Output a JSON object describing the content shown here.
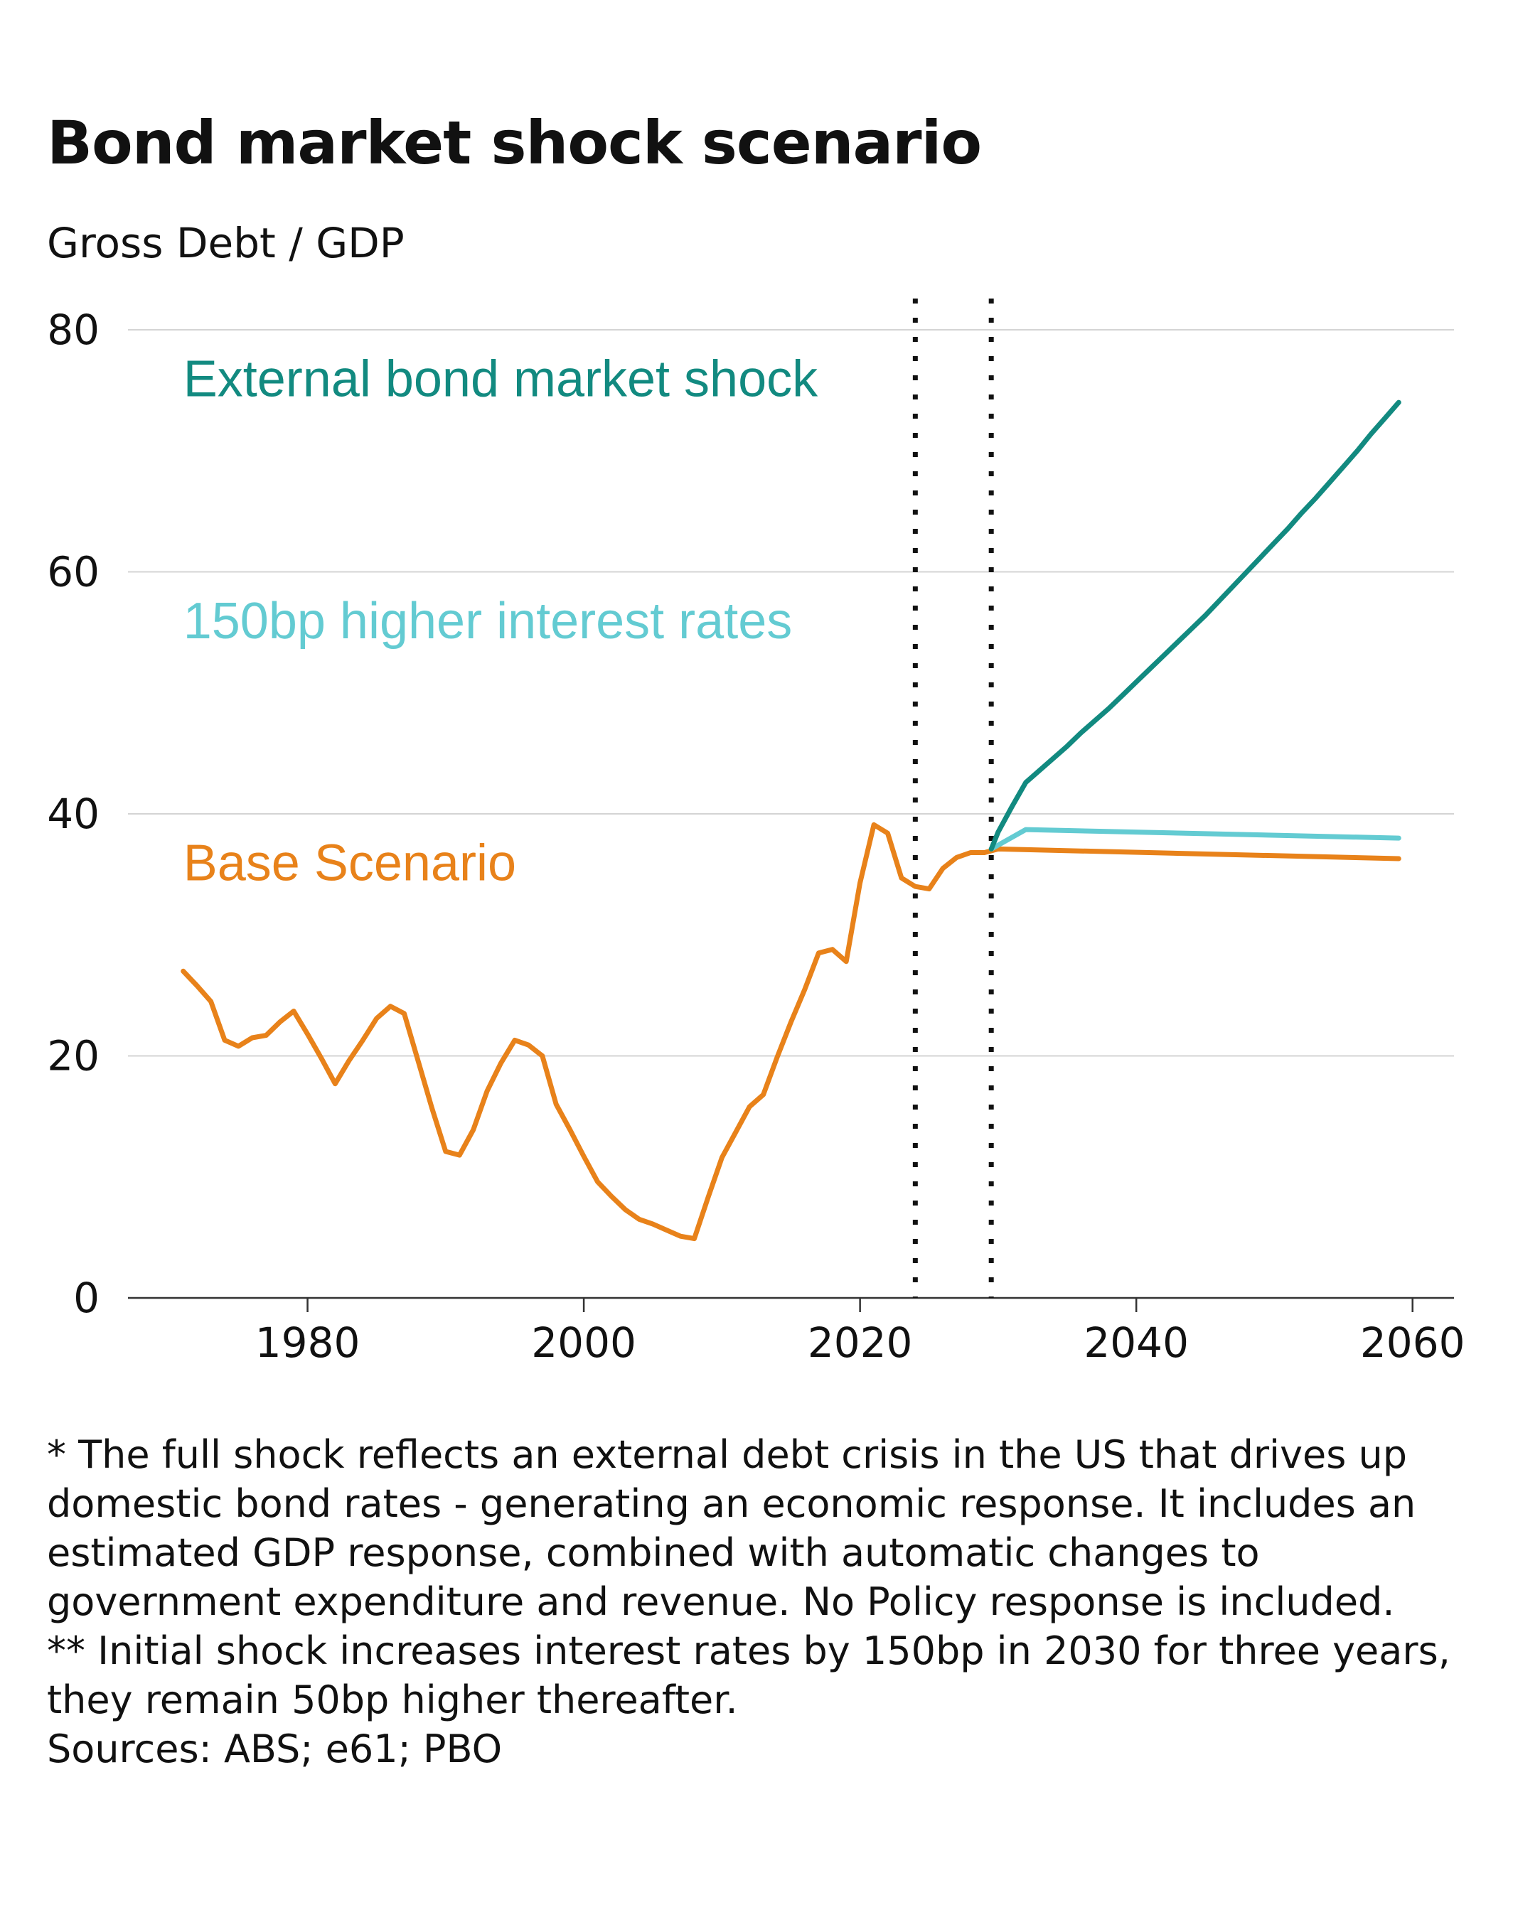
{
  "chart_data": {
    "type": "line",
    "title": "Bond market shock scenario",
    "ylabel": "Gross Debt / GDP",
    "xlim": [
      1967,
      2063
    ],
    "ylim": [
      0,
      80
    ],
    "x_ticks": [
      1980,
      2000,
      2020,
      2040,
      2060
    ],
    "y_ticks": [
      0,
      20,
      40,
      60,
      80
    ],
    "grid": "horizontal",
    "vertical_markers": [
      2024,
      2029.5
    ],
    "series": [
      {
        "name": "Base Scenario",
        "color": "#E8821A",
        "label_anchor": [
          1971,
          34.5
        ],
        "x": [
          1971,
          1972,
          1973,
          1974,
          1975,
          1976,
          1977,
          1978,
          1979,
          1980,
          1981,
          1982,
          1983,
          1984,
          1985,
          1986,
          1987,
          1988,
          1989,
          1990,
          1991,
          1992,
          1993,
          1994,
          1995,
          1996,
          1997,
          1998,
          1999,
          2000,
          2001,
          2002,
          2003,
          2004,
          2005,
          2006,
          2007,
          2008,
          2009,
          2010,
          2011,
          2012,
          2013,
          2014,
          2015,
          2016,
          2017,
          2018,
          2019,
          2020,
          2021,
          2022,
          2023,
          2024,
          2025,
          2026,
          2027,
          2028,
          2029,
          2030,
          2059
        ],
        "y": [
          27,
          25.8,
          24.5,
          21.3,
          20.8,
          21.5,
          21.7,
          22.8,
          23.7,
          21.8,
          19.8,
          17.7,
          19.6,
          21.3,
          23.1,
          24.1,
          23.5,
          19.6,
          15.7,
          12.1,
          11.8,
          13.9,
          17.1,
          19.4,
          21.3,
          20.9,
          20,
          16,
          13.9,
          11.7,
          9.6,
          8.4,
          7.3,
          6.5,
          6.1,
          5.6,
          5.1,
          4.9,
          8.3,
          11.6,
          13.7,
          15.8,
          16.8,
          19.9,
          22.8,
          25.5,
          28.5,
          28.8,
          27.8,
          34.3,
          39.1,
          38.4,
          34.7,
          34,
          33.8,
          35.5,
          36.4,
          36.8,
          36.8,
          37.1,
          36.3
        ]
      },
      {
        "name": "150bp higher interest rates",
        "color": "#63CBD2",
        "label_anchor": [
          1971,
          54.5
        ],
        "x": [
          2029.5,
          2032,
          2059
        ],
        "y": [
          37.1,
          38.7,
          38
        ]
      },
      {
        "name": "External bond market shock",
        "color": "#128A80",
        "label_anchor": [
          1971,
          74.5
        ],
        "x": [
          2029.5,
          2030,
          2031,
          2032,
          2033,
          2034,
          2035,
          2036,
          2037,
          2038,
          2039,
          2040,
          2041,
          2042,
          2043,
          2044,
          2045,
          2046,
          2047,
          2048,
          2049,
          2050,
          2051,
          2052,
          2053,
          2054,
          2055,
          2056,
          2057,
          2058,
          2059
        ],
        "y": [
          37.1,
          38.5,
          40.6,
          42.6,
          43.6,
          44.6,
          45.6,
          46.7,
          47.7,
          48.7,
          49.8,
          50.9,
          52.0,
          53.1,
          54.2,
          55.3,
          56.4,
          57.6,
          58.8,
          60.0,
          61.2,
          62.4,
          63.6,
          64.9,
          66.1,
          67.4,
          68.7,
          70.0,
          71.4,
          72.7,
          74.0
        ]
      }
    ]
  },
  "footnotes": [
    "* The full shock reflects an external debt crisis in the US that drives up domestic bond rates - generating an economic response. It includes an estimated GDP response, combined with automatic changes to government expenditure and revenue. No Policy response is included.",
    "** Initial shock increases interest rates by 150bp in 2030 for three years, they remain 50bp higher thereafter.",
    "Sources: ABS; e61; PBO"
  ]
}
